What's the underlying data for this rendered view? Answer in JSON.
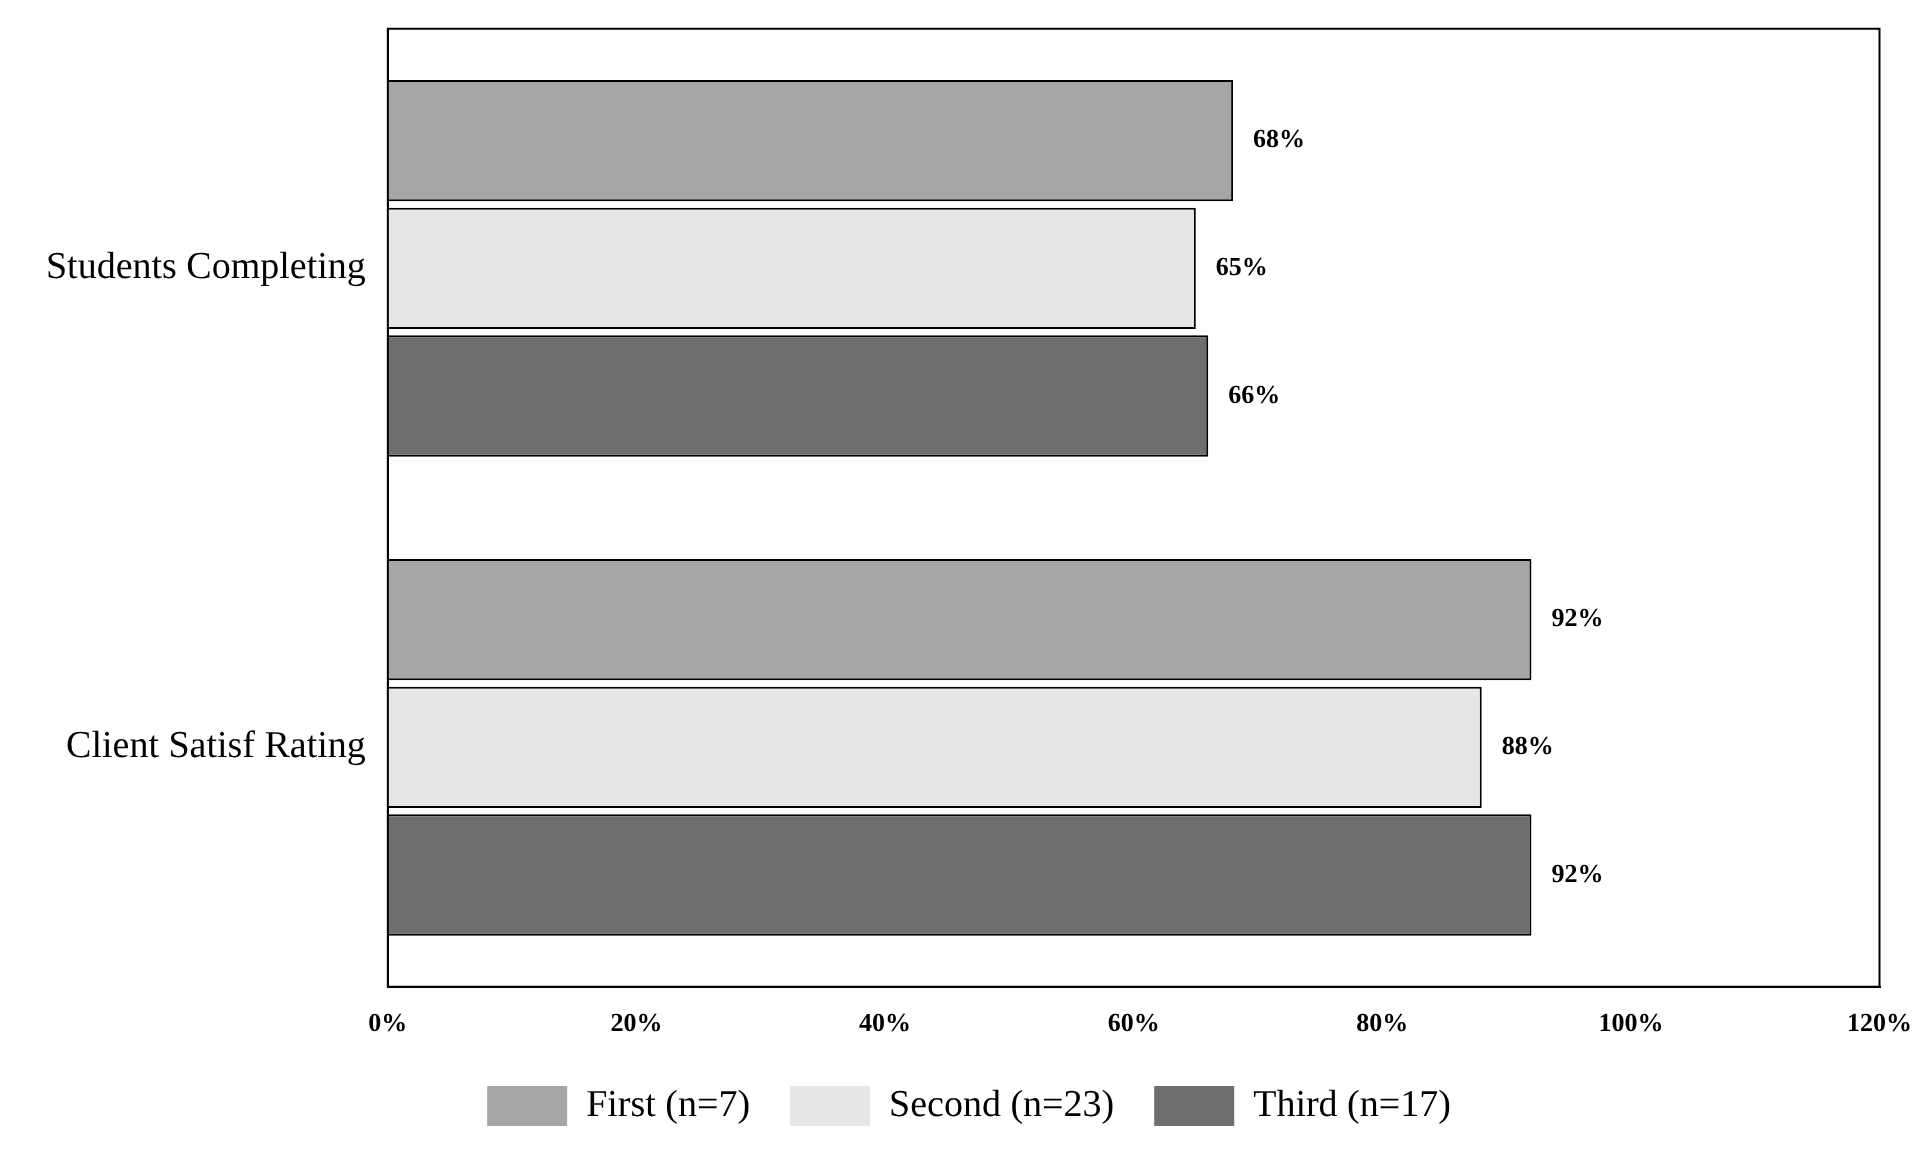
{
  "chart_data": {
    "type": "bar",
    "orientation": "horizontal",
    "categories": [
      "Students Completing",
      "Client Satisf Rating"
    ],
    "series": [
      {
        "name": "First (n=7)",
        "color": "#a6a6a6",
        "values": [
          68,
          92
        ],
        "value_labels": [
          "68%",
          "92%"
        ]
      },
      {
        "name": "Second (n=23)",
        "color": "#e6e6e6",
        "values": [
          65,
          88
        ],
        "value_labels": [
          "65%",
          "88%"
        ]
      },
      {
        "name": "Third (n=17)",
        "color": "#6e6e6e",
        "values": [
          66,
          92
        ],
        "value_labels": [
          "66%",
          "92%"
        ]
      }
    ],
    "xlim": [
      0,
      120
    ],
    "xticks": [
      {
        "value": 0,
        "label": "0%"
      },
      {
        "value": 20,
        "label": "20%"
      },
      {
        "value": 40,
        "label": "40%"
      },
      {
        "value": 60,
        "label": "60%"
      },
      {
        "value": 80,
        "label": "80%"
      },
      {
        "value": 100,
        "label": "100%"
      },
      {
        "value": 120,
        "label": "120%"
      }
    ],
    "grid": false,
    "legend": "bottom"
  }
}
